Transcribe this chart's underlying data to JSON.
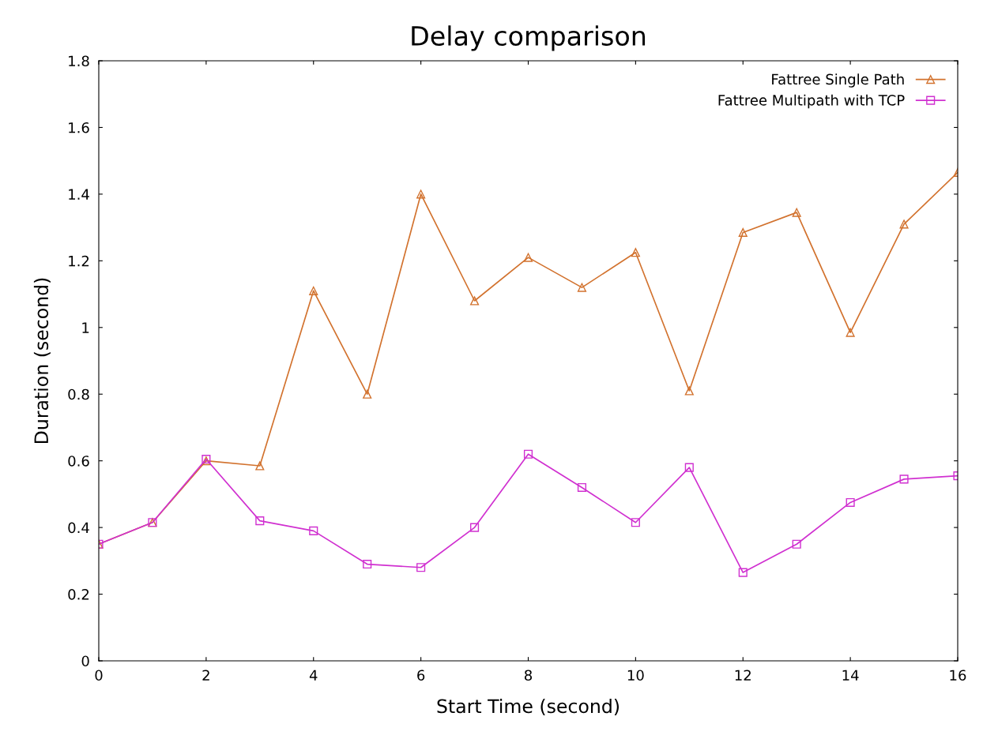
{
  "chart_data": {
    "type": "line",
    "title": "Delay comparison",
    "xlabel": "Start Time (second)",
    "ylabel": "Duration (second)",
    "x": [
      0,
      1,
      2,
      3,
      4,
      5,
      6,
      7,
      8,
      9,
      10,
      11,
      12,
      13,
      14,
      15,
      16
    ],
    "series": [
      {
        "name": "Fattree Single Path",
        "color": "#d2722e",
        "marker": "triangle",
        "values": [
          0.35,
          0.415,
          0.6,
          0.585,
          1.11,
          0.8,
          1.4,
          1.08,
          1.21,
          1.12,
          1.225,
          0.81,
          1.285,
          1.345,
          0.985,
          1.31,
          1.465
        ]
      },
      {
        "name": "Fattree Multipath with TCP",
        "color": "#d030d0",
        "marker": "square",
        "values": [
          0.35,
          0.415,
          0.605,
          0.42,
          0.39,
          0.29,
          0.28,
          0.4,
          0.62,
          0.52,
          0.415,
          0.58,
          0.265,
          0.35,
          0.475,
          0.545,
          0.555
        ]
      }
    ],
    "xlim": [
      0,
      16
    ],
    "xticks": [
      0,
      2,
      4,
      6,
      8,
      10,
      12,
      14,
      16
    ],
    "ylim": [
      0,
      1.8
    ],
    "yticks": [
      0,
      0.2,
      0.4,
      0.6,
      0.8,
      1,
      1.2,
      1.4,
      1.6,
      1.8
    ],
    "grid": false,
    "legend": "top right",
    "line_style": "solid"
  }
}
